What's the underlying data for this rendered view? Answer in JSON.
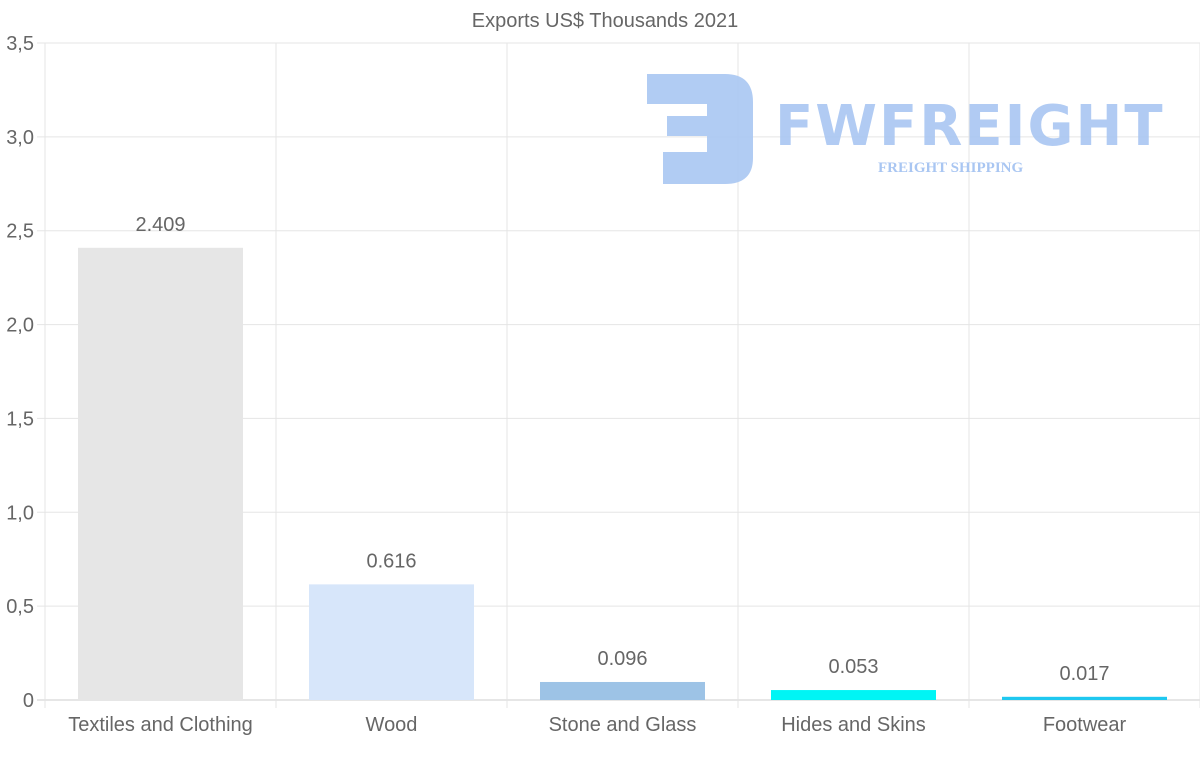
{
  "chart_data": {
    "type": "bar",
    "title": "Exports US$ Thousands 2021",
    "categories": [
      "Textiles and Clothing",
      "Wood",
      "Stone and Glass",
      "Hides and Skins",
      "Footwear"
    ],
    "values": [
      2.409,
      0.616,
      0.096,
      0.053,
      0.017
    ],
    "data_labels": [
      "2.409",
      "0.616",
      "0.096",
      "0.053",
      "0.017"
    ],
    "colors": [
      "#e6e6e6",
      "#d7e6fa",
      "#9dc3e6",
      "#00f5f5",
      "#1fc8f0"
    ],
    "ylim": [
      0,
      3.5
    ],
    "yticks": [
      0,
      0.5,
      1.0,
      1.5,
      2.0,
      2.5,
      3.0,
      3.5
    ],
    "ytick_labels": [
      "0",
      "0,5",
      "1,0",
      "1,5",
      "2,0",
      "2,5",
      "3,0",
      "3,5"
    ],
    "xlabel": "",
    "ylabel": "",
    "grid": true,
    "legend": "none"
  },
  "watermark": {
    "brand": "FWFREIGHT",
    "tagline": "FREIGHT SHIPPING"
  }
}
